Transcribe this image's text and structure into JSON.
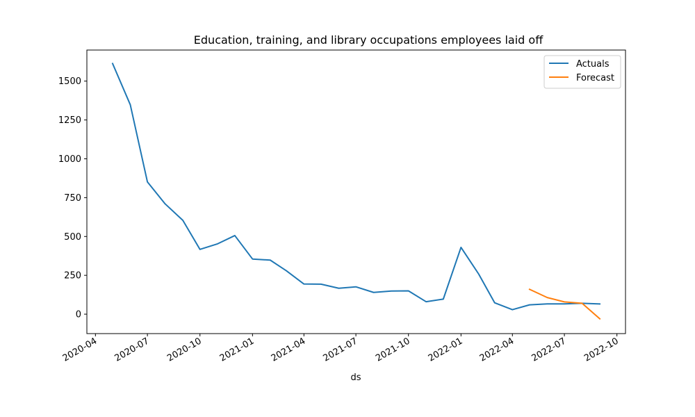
{
  "chart_data": {
    "type": "line",
    "title": "Education, training, and library occupations employees laid off",
    "xlabel": "ds",
    "ylabel": "",
    "x_axis": {
      "type": "date",
      "range": [
        "2020-03-17",
        "2022-10-16"
      ],
      "tick_labels": [
        "2020-04",
        "2020-07",
        "2020-10",
        "2021-01",
        "2021-04",
        "2021-07",
        "2021-10",
        "2022-01",
        "2022-04",
        "2022-07",
        "2022-10"
      ]
    },
    "y_axis": {
      "range": [
        -125,
        1700
      ],
      "ticks": [
        0,
        250,
        500,
        750,
        1000,
        1250,
        1500
      ]
    },
    "grid": false,
    "legend": {
      "position": "top-right",
      "entries": [
        "Actuals",
        "Forecast"
      ]
    },
    "series": [
      {
        "name": "Actuals",
        "color": "#1f77b4",
        "points": [
          {
            "x": "2020-05-01",
            "y": 1613
          },
          {
            "x": "2020-06-01",
            "y": 1348
          },
          {
            "x": "2020-07-01",
            "y": 851
          },
          {
            "x": "2020-08-01",
            "y": 710
          },
          {
            "x": "2020-09-01",
            "y": 604
          },
          {
            "x": "2020-10-01",
            "y": 417
          },
          {
            "x": "2020-11-01",
            "y": 453
          },
          {
            "x": "2020-12-01",
            "y": 506
          },
          {
            "x": "2021-01-01",
            "y": 355
          },
          {
            "x": "2021-02-01",
            "y": 348
          },
          {
            "x": "2021-03-01",
            "y": 280
          },
          {
            "x": "2021-04-01",
            "y": 194
          },
          {
            "x": "2021-05-01",
            "y": 193
          },
          {
            "x": "2021-06-01",
            "y": 167
          },
          {
            "x": "2021-07-01",
            "y": 176
          },
          {
            "x": "2021-08-01",
            "y": 140
          },
          {
            "x": "2021-09-01",
            "y": 149
          },
          {
            "x": "2021-10-01",
            "y": 150
          },
          {
            "x": "2021-11-01",
            "y": 80
          },
          {
            "x": "2021-12-01",
            "y": 97
          },
          {
            "x": "2022-01-01",
            "y": 430
          },
          {
            "x": "2022-02-01",
            "y": 258
          },
          {
            "x": "2022-03-01",
            "y": 73
          },
          {
            "x": "2022-04-01",
            "y": 29
          },
          {
            "x": "2022-05-01",
            "y": 60
          },
          {
            "x": "2022-06-01",
            "y": 66
          },
          {
            "x": "2022-07-01",
            "y": 66
          },
          {
            "x": "2022-08-01",
            "y": 70
          },
          {
            "x": "2022-09-01",
            "y": 66
          }
        ]
      },
      {
        "name": "Forecast",
        "color": "#ff7f0e",
        "points": [
          {
            "x": "2022-05-01",
            "y": 160
          },
          {
            "x": "2022-06-01",
            "y": 107
          },
          {
            "x": "2022-07-01",
            "y": 79
          },
          {
            "x": "2022-08-01",
            "y": 70
          },
          {
            "x": "2022-09-01",
            "y": -30
          }
        ]
      }
    ]
  }
}
